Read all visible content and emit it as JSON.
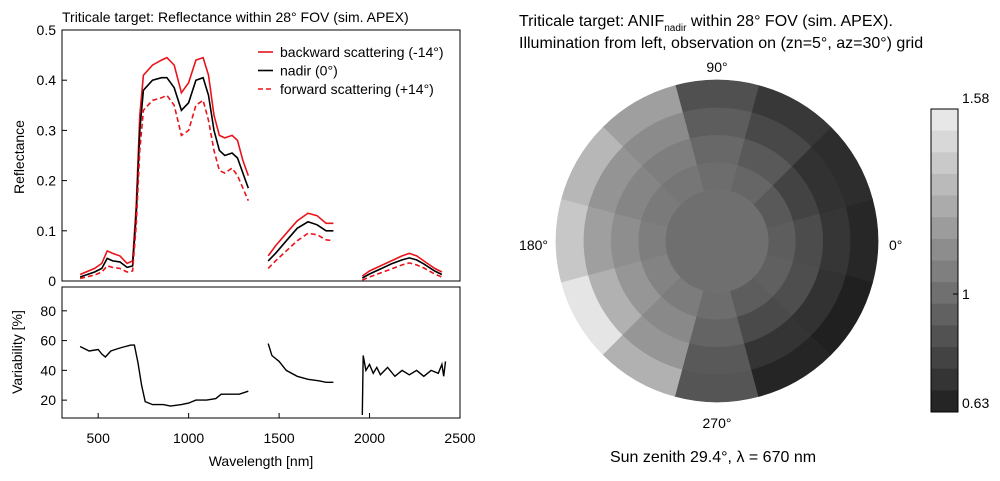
{
  "chart_data": [
    {
      "type": "line",
      "title": "Triticale target: Reflectance within 28° FOV (sim. APEX)",
      "ylabel": "Reflectance",
      "ylim": [
        0,
        0.5
      ],
      "yticks": [
        "0",
        "0.1",
        "0.2",
        "0.3",
        "0.4",
        "0.5"
      ],
      "legend_position": "top-right",
      "series": [
        {
          "name": "backward scattering (-14°)",
          "color": "#e8141c",
          "dash": "solid",
          "segments": [
            [
              [
                400,
                0.013
              ],
              [
                480,
                0.025
              ],
              [
                520,
                0.035
              ],
              [
                550,
                0.06
              ],
              [
                580,
                0.055
              ],
              [
                620,
                0.05
              ],
              [
                660,
                0.035
              ],
              [
                690,
                0.04
              ],
              [
                710,
                0.15
              ],
              [
                730,
                0.33
              ],
              [
                750,
                0.41
              ],
              [
                800,
                0.43
              ],
              [
                850,
                0.44
              ],
              [
                880,
                0.445
              ],
              [
                920,
                0.43
              ],
              [
                960,
                0.375
              ],
              [
                1000,
                0.395
              ],
              [
                1040,
                0.44
              ],
              [
                1080,
                0.445
              ],
              [
                1110,
                0.41
              ],
              [
                1140,
                0.33
              ],
              [
                1170,
                0.29
              ],
              [
                1200,
                0.285
              ],
              [
                1240,
                0.29
              ],
              [
                1270,
                0.28
              ],
              [
                1300,
                0.24
              ],
              [
                1330,
                0.21
              ]
            ],
            [
              [
                1440,
                0.05
              ],
              [
                1480,
                0.07
              ],
              [
                1540,
                0.095
              ],
              [
                1600,
                0.12
              ],
              [
                1660,
                0.135
              ],
              [
                1710,
                0.13
              ],
              [
                1760,
                0.115
              ],
              [
                1800,
                0.115
              ]
            ],
            [
              [
                1960,
                0.01
              ],
              [
                2000,
                0.02
              ],
              [
                2060,
                0.03
              ],
              [
                2120,
                0.04
              ],
              [
                2180,
                0.05
              ],
              [
                2220,
                0.055
              ],
              [
                2260,
                0.05
              ],
              [
                2300,
                0.04
              ],
              [
                2360,
                0.025
              ],
              [
                2400,
                0.018
              ]
            ]
          ]
        },
        {
          "name": "nadir (0°)",
          "color": "#000000",
          "dash": "solid",
          "segments": [
            [
              [
                400,
                0.008
              ],
              [
                480,
                0.018
              ],
              [
                520,
                0.025
              ],
              [
                550,
                0.045
              ],
              [
                580,
                0.04
              ],
              [
                620,
                0.038
              ],
              [
                660,
                0.027
              ],
              [
                690,
                0.03
              ],
              [
                710,
                0.13
              ],
              [
                730,
                0.3
              ],
              [
                750,
                0.38
              ],
              [
                800,
                0.4
              ],
              [
                850,
                0.405
              ],
              [
                880,
                0.405
              ],
              [
                920,
                0.385
              ],
              [
                960,
                0.34
              ],
              [
                1000,
                0.355
              ],
              [
                1040,
                0.4
              ],
              [
                1080,
                0.405
              ],
              [
                1110,
                0.37
              ],
              [
                1140,
                0.3
              ],
              [
                1170,
                0.26
              ],
              [
                1200,
                0.25
              ],
              [
                1240,
                0.255
              ],
              [
                1270,
                0.245
              ],
              [
                1300,
                0.215
              ],
              [
                1330,
                0.185
              ]
            ],
            [
              [
                1440,
                0.04
              ],
              [
                1480,
                0.055
              ],
              [
                1540,
                0.08
              ],
              [
                1600,
                0.105
              ],
              [
                1660,
                0.118
              ],
              [
                1710,
                0.112
              ],
              [
                1760,
                0.1
              ],
              [
                1800,
                0.1
              ]
            ],
            [
              [
                1960,
                0.006
              ],
              [
                2000,
                0.014
              ],
              [
                2060,
                0.024
              ],
              [
                2120,
                0.034
              ],
              [
                2180,
                0.042
              ],
              [
                2220,
                0.046
              ],
              [
                2260,
                0.042
              ],
              [
                2300,
                0.034
              ],
              [
                2360,
                0.02
              ],
              [
                2400,
                0.013
              ]
            ]
          ]
        },
        {
          "name": "forward scattering (+14°)",
          "color": "#e8141c",
          "dash": "dashed",
          "segments": [
            [
              [
                400,
                0.005
              ],
              [
                480,
                0.012
              ],
              [
                520,
                0.018
              ],
              [
                550,
                0.03
              ],
              [
                580,
                0.027
              ],
              [
                620,
                0.025
              ],
              [
                660,
                0.018
              ],
              [
                690,
                0.02
              ],
              [
                710,
                0.11
              ],
              [
                730,
                0.26
              ],
              [
                750,
                0.34
              ],
              [
                800,
                0.36
              ],
              [
                850,
                0.365
              ],
              [
                880,
                0.37
              ],
              [
                920,
                0.35
              ],
              [
                960,
                0.29
              ],
              [
                1000,
                0.3
              ],
              [
                1040,
                0.35
              ],
              [
                1080,
                0.36
              ],
              [
                1110,
                0.32
              ],
              [
                1140,
                0.26
              ],
              [
                1170,
                0.22
              ],
              [
                1200,
                0.215
              ],
              [
                1240,
                0.225
              ],
              [
                1270,
                0.21
              ],
              [
                1300,
                0.185
              ],
              [
                1330,
                0.16
              ]
            ],
            [
              [
                1440,
                0.025
              ],
              [
                1480,
                0.04
              ],
              [
                1540,
                0.06
              ],
              [
                1600,
                0.08
              ],
              [
                1660,
                0.095
              ],
              [
                1710,
                0.092
              ],
              [
                1760,
                0.082
              ],
              [
                1800,
                0.08
              ]
            ],
            [
              [
                1960,
                0.002
              ],
              [
                2000,
                0.008
              ],
              [
                2060,
                0.016
              ],
              [
                2120,
                0.024
              ],
              [
                2180,
                0.032
              ],
              [
                2220,
                0.036
              ],
              [
                2260,
                0.032
              ],
              [
                2300,
                0.026
              ],
              [
                2360,
                0.014
              ],
              [
                2400,
                0.008
              ]
            ]
          ]
        }
      ]
    },
    {
      "type": "line",
      "xlabel": "Wavelength [nm]",
      "ylabel": "Variability [%]",
      "xlim": [
        300,
        2500
      ],
      "ylim": [
        8,
        96
      ],
      "xticks": [
        "500",
        "1000",
        "1500",
        "2000",
        "2500"
      ],
      "yticks": [
        "20",
        "40",
        "60",
        "80"
      ],
      "series": [
        {
          "color": "#000000",
          "segments": [
            [
              [
                400,
                56
              ],
              [
                450,
                53
              ],
              [
                500,
                54
              ],
              [
                520,
                51
              ],
              [
                540,
                49
              ],
              [
                570,
                53
              ],
              [
                620,
                55
              ],
              [
                680,
                57
              ],
              [
                700,
                57
              ],
              [
                720,
                45
              ],
              [
                740,
                30
              ],
              [
                760,
                19
              ],
              [
                800,
                17
              ],
              [
                860,
                17
              ],
              [
                900,
                16
              ],
              [
                960,
                17
              ],
              [
                1000,
                18
              ],
              [
                1040,
                20
              ],
              [
                1100,
                20
              ],
              [
                1150,
                21
              ],
              [
                1180,
                24
              ],
              [
                1230,
                24
              ],
              [
                1280,
                24
              ],
              [
                1330,
                26
              ]
            ],
            [
              [
                1440,
                58
              ],
              [
                1460,
                50
              ],
              [
                1500,
                46
              ],
              [
                1540,
                40
              ],
              [
                1600,
                36
              ],
              [
                1660,
                34
              ],
              [
                1720,
                33
              ],
              [
                1760,
                32
              ],
              [
                1800,
                32
              ]
            ],
            [
              [
                1960,
                10
              ],
              [
                1965,
                50
              ],
              [
                1980,
                40
              ],
              [
                2000,
                44
              ],
              [
                2020,
                38
              ],
              [
                2040,
                42
              ],
              [
                2060,
                37
              ],
              [
                2100,
                42
              ],
              [
                2140,
                36
              ],
              [
                2180,
                40
              ],
              [
                2220,
                37
              ],
              [
                2260,
                40
              ],
              [
                2300,
                36
              ],
              [
                2340,
                40
              ],
              [
                2380,
                38
              ],
              [
                2400,
                44
              ],
              [
                2410,
                36
              ],
              [
                2420,
                46
              ]
            ]
          ]
        }
      ]
    },
    {
      "type": "heatmap",
      "title": "Triticale target: ANIF",
      "title_subscript": "nadir",
      "title_rest": " within 28° FOV (sim. APEX).",
      "title_line2": "Illumination from left, observation on (zn=5°, az=30°) grid",
      "caption": "Sun zenith 29.4°, λ = 670 nm",
      "angle_labels": {
        "right": "0°",
        "top": "90°",
        "left": "180°",
        "bottom": "270°"
      },
      "azimuth_bins_deg": [
        0,
        30,
        60,
        90,
        120,
        150,
        180,
        210,
        240,
        270,
        300,
        330
      ],
      "zenith_rings_deg": [
        5,
        10,
        15,
        20,
        25
      ],
      "values": [
        [
          1.0,
          0.92,
          0.84,
          0.74,
          0.67
        ],
        [
          0.98,
          0.9,
          0.8,
          0.72,
          0.7
        ],
        [
          1.0,
          0.96,
          0.9,
          0.82,
          0.75
        ],
        [
          1.0,
          0.99,
          0.97,
          0.92,
          0.86
        ],
        [
          1.0,
          1.03,
          1.07,
          1.13,
          1.22
        ],
        [
          1.0,
          1.05,
          1.1,
          1.17,
          1.33
        ],
        [
          1.0,
          1.07,
          1.14,
          1.22,
          1.4
        ],
        [
          1.0,
          1.09,
          1.18,
          1.3,
          1.54
        ],
        [
          1.0,
          1.06,
          1.12,
          1.18,
          1.3
        ],
        [
          1.0,
          0.99,
          0.95,
          0.9,
          0.88
        ],
        [
          1.0,
          0.92,
          0.83,
          0.73,
          0.66
        ],
        [
          1.0,
          0.93,
          0.85,
          0.72,
          0.64
        ]
      ],
      "colorbar": {
        "min": 0.63,
        "max": 1.58,
        "tick_labels": [
          "1.58",
          "1",
          "0.63"
        ],
        "tick_values": [
          1.58,
          1.0,
          0.63
        ],
        "steps": 14
      }
    }
  ]
}
